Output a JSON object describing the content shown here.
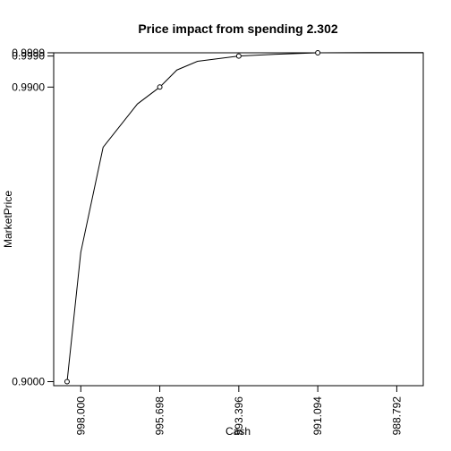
{
  "chart_data": {
    "type": "line",
    "title": "Price impact from spending 2.302",
    "xlabel": "Cash",
    "ylabel": "MarketPrice",
    "x_axis_reversed": true,
    "xlim": [
      998.79,
      988.02
    ],
    "ylim": [
      0.89875,
      0.99989
    ],
    "x_ticks": [
      998.0,
      995.698,
      993.396,
      991.094,
      988.792
    ],
    "x_tick_labels": [
      "998.000",
      "995.698",
      "993.396",
      "991.094",
      "988.792"
    ],
    "y_ticks": [
      0.9,
      0.99,
      0.999,
      0.9999
    ],
    "y_tick_labels": [
      "0.9000",
      "0.9900",
      "0.9990",
      "0.9999"
    ],
    "grid": false,
    "series": [
      {
        "style": "line",
        "x": [
          998.4,
          998.0,
          997.35,
          996.35,
          995.698,
          995.2,
          994.6,
          993.396,
          992.3,
          991.094,
          989.5,
          988.02
        ],
        "y": [
          0.9,
          0.94,
          0.972,
          0.985,
          0.99,
          0.995,
          0.9975,
          0.999,
          0.9995,
          0.9999,
          0.99995,
          0.99995
        ]
      },
      {
        "style": "points",
        "marker": "open-circle",
        "x": [
          998.4,
          995.698,
          993.396,
          991.094
        ],
        "y": [
          0.9,
          0.99,
          0.999,
          0.9999
        ]
      }
    ]
  }
}
